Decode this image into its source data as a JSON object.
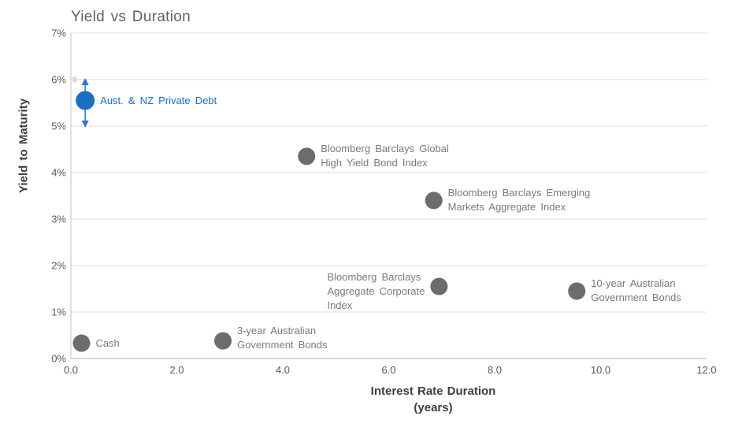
{
  "chart_data": {
    "type": "scatter",
    "title": "Yield vs Duration",
    "xlabel_line1": "Interest Rate Duration",
    "xlabel_line2": "(years)",
    "ylabel": "Yield to Maturity",
    "xlim": [
      0,
      12
    ],
    "ylim": [
      0,
      7
    ],
    "grid": true,
    "legend": "none",
    "x_ticks": [
      {
        "value": 0,
        "label": "0.0"
      },
      {
        "value": 2,
        "label": "2.0"
      },
      {
        "value": 4,
        "label": "4.0"
      },
      {
        "value": 6,
        "label": "6.0"
      },
      {
        "value": 8,
        "label": "8.0"
      },
      {
        "value": 10,
        "label": "10.0"
      },
      {
        "value": 12,
        "label": "12.0"
      }
    ],
    "y_ticks": [
      {
        "value": 0,
        "label": "0%"
      },
      {
        "value": 1,
        "label": "1%"
      },
      {
        "value": 2,
        "label": "2%"
      },
      {
        "value": 3,
        "label": "3%"
      },
      {
        "value": 4,
        "label": "4%"
      },
      {
        "value": 5,
        "label": "5%"
      },
      {
        "value": 6,
        "label": "6%"
      },
      {
        "value": 7,
        "label": "7%"
      }
    ],
    "points": [
      {
        "name": "aust-nz-private-debt",
        "label_lines": [
          "Aust. & NZ Private Debt"
        ],
        "x": 0.27,
        "y": 5.55,
        "side": "right",
        "series": "highlight",
        "error_bar": {
          "y_low": 5.0,
          "y_high": 6.0
        }
      },
      {
        "name": "cash",
        "label_lines": [
          "Cash"
        ],
        "x": 0.2,
        "y": 0.33,
        "side": "right",
        "series": "default"
      },
      {
        "name": "3yr-aus-govt-bonds",
        "label_lines": [
          "3-year Australian",
          "Government Bonds"
        ],
        "x": 2.87,
        "y": 0.38,
        "side": "right",
        "series": "default",
        "label_dy": -4
      },
      {
        "name": "bb-global-high-yield",
        "label_lines": [
          "Bloomberg Barclays Global",
          "High Yield Bond Index"
        ],
        "x": 4.45,
        "y": 4.35,
        "side": "right",
        "series": "default"
      },
      {
        "name": "bb-emerging-markets",
        "label_lines": [
          "Bloomberg Barclays Emerging",
          "Markets Aggregate Index"
        ],
        "x": 6.85,
        "y": 3.4,
        "side": "right",
        "series": "default"
      },
      {
        "name": "bb-aggregate-corporate",
        "label_lines": [
          "Bloomberg Barclays",
          "Aggregate Corporate",
          "Index"
        ],
        "x": 6.95,
        "y": 1.55,
        "side": "left",
        "series": "default",
        "label_dy": 6
      },
      {
        "name": "10yr-aus-govt-bonds",
        "label_lines": [
          "10-year Australian",
          "Government Bonds"
        ],
        "x": 9.55,
        "y": 1.45,
        "side": "right",
        "series": "default"
      }
    ],
    "ghost_marker": {
      "x": 0.07,
      "y": 6.0
    },
    "colors": {
      "highlight": "#1b6fc1",
      "default_dot": "#6f6b6b",
      "label_default": "#7d7878",
      "label_highlight": "#1b6fc1",
      "gridline": "#dcdcdc",
      "axis_line": "#c3c3c3",
      "ghost": "#d9d9d9",
      "arrow": "#2e75c6"
    }
  }
}
